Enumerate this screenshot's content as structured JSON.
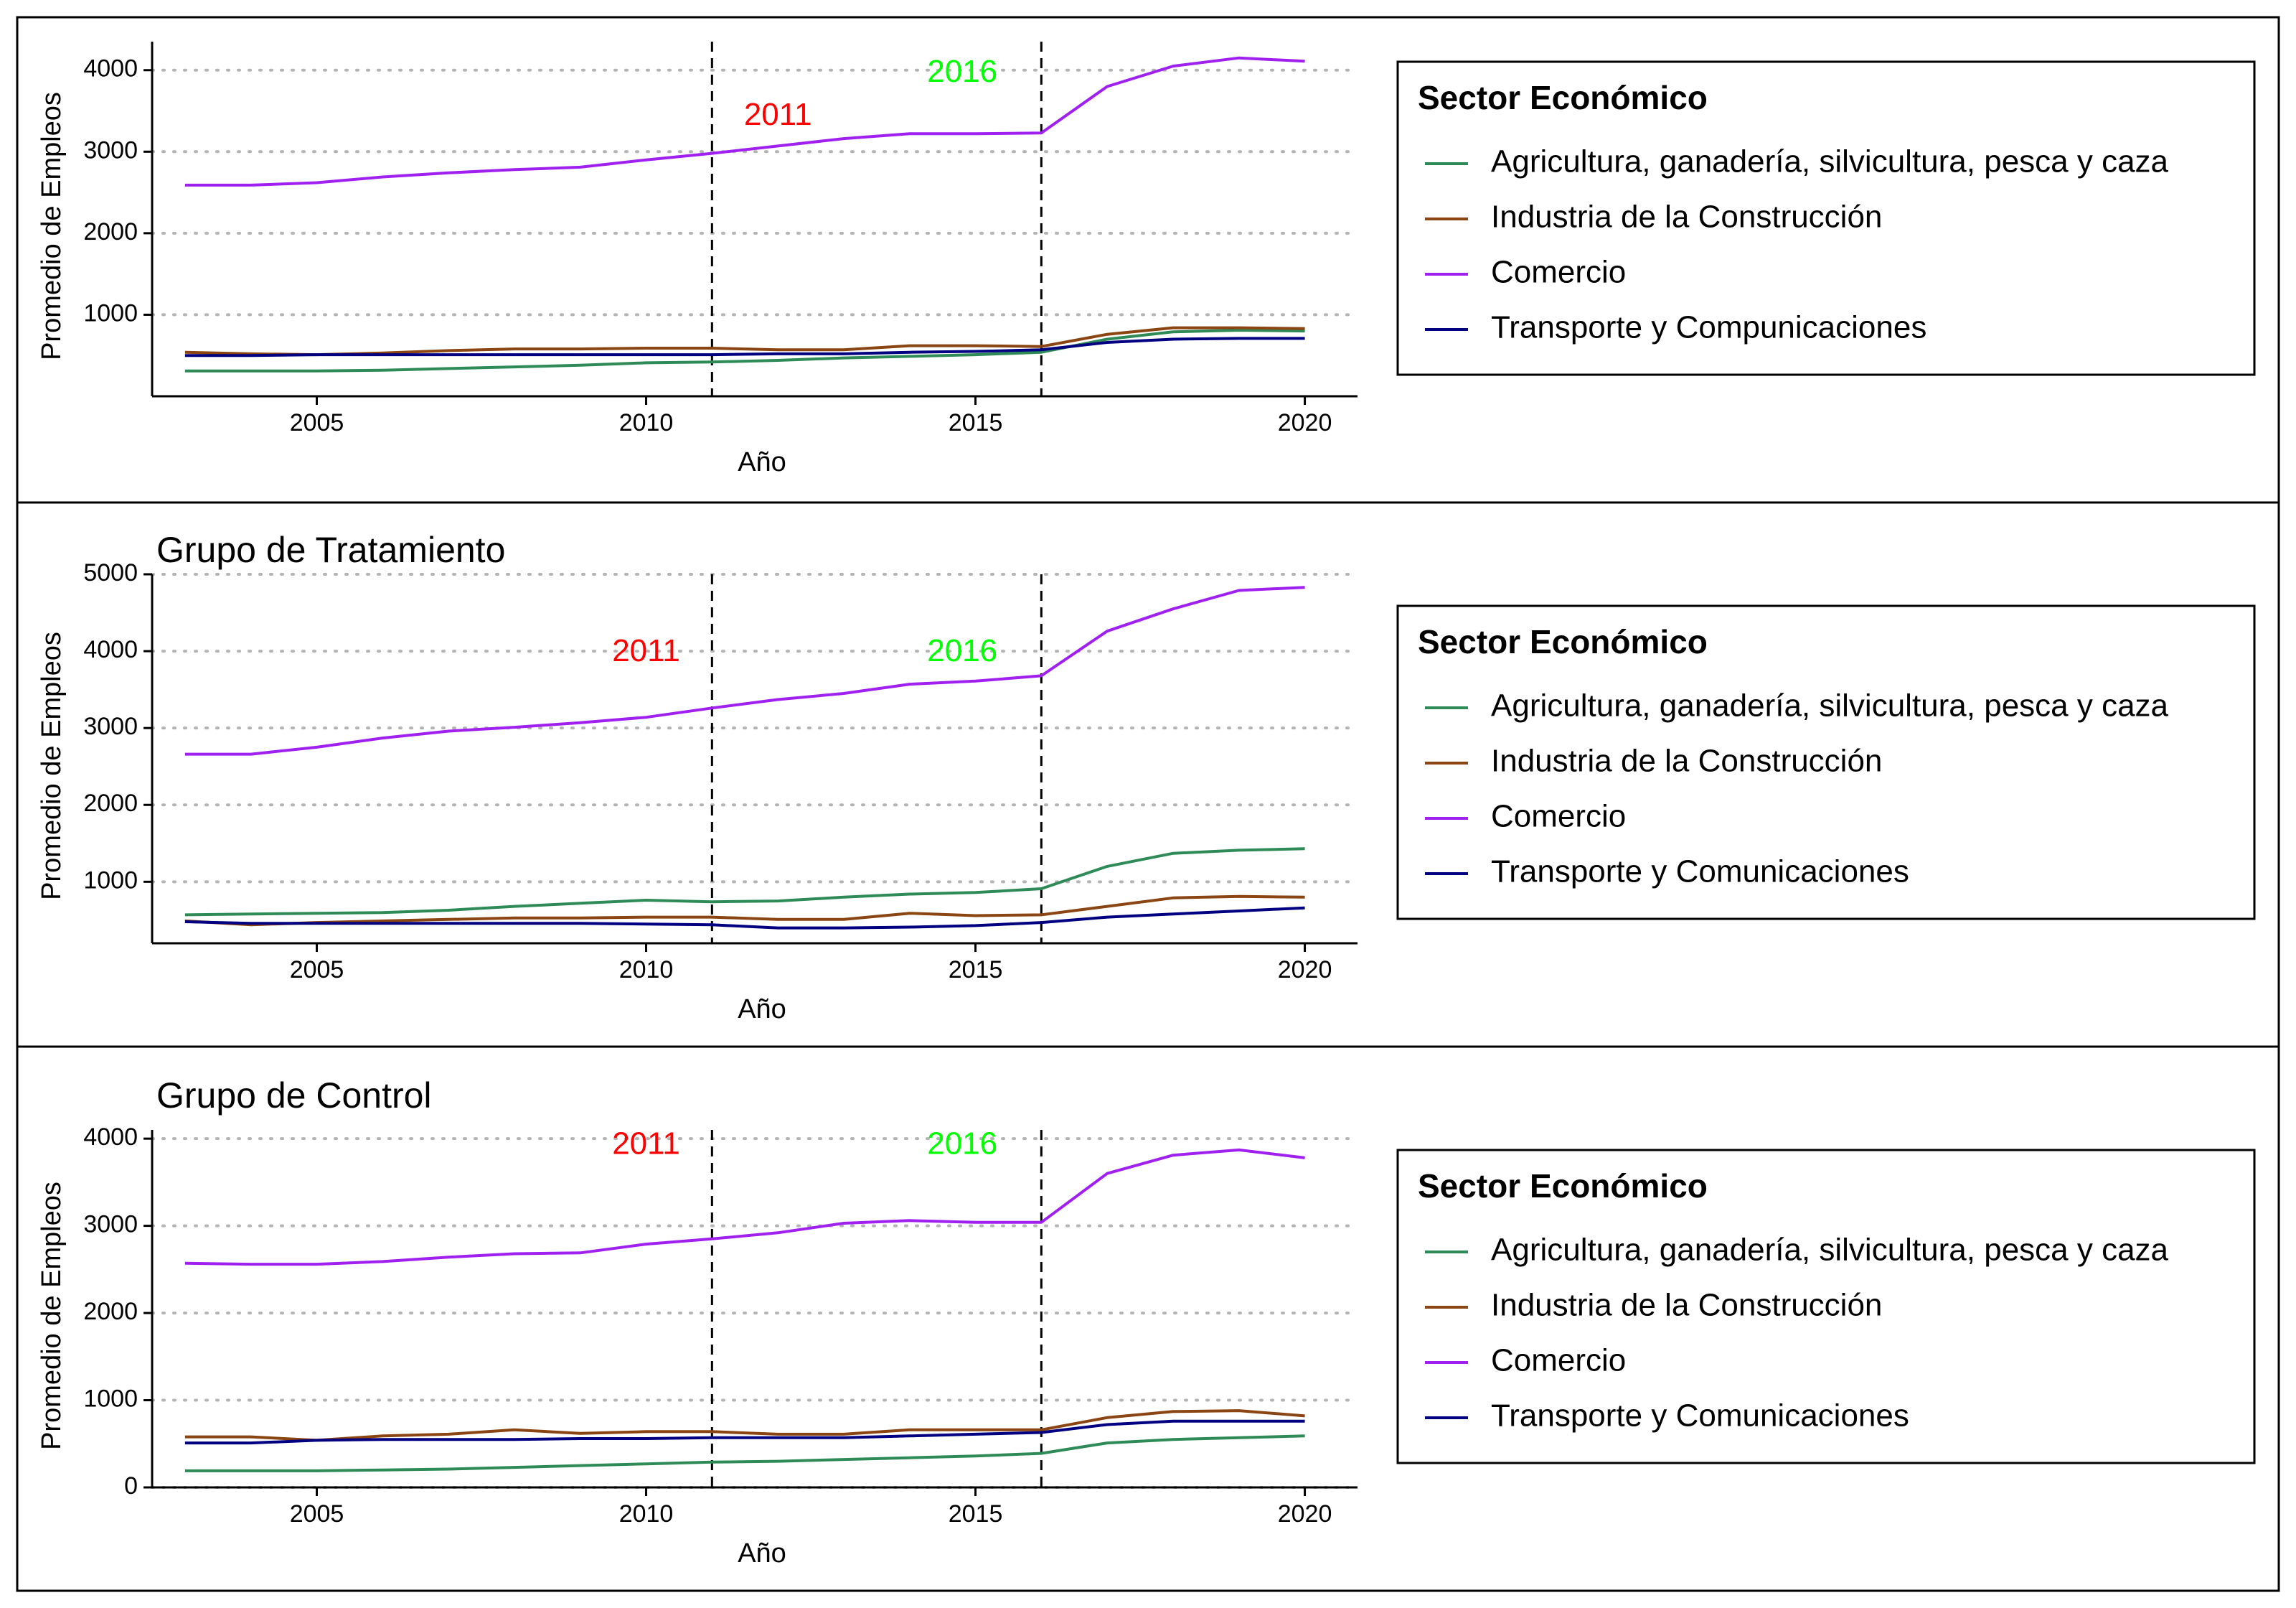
{
  "chart_data": [
    {
      "type": "line",
      "title": "",
      "xlabel": "Año",
      "ylabel": "Promedio de Empleos",
      "xlim": [
        2002.5,
        2020.8
      ],
      "ylim": [
        0,
        4350
      ],
      "xticks": [
        2005,
        2010,
        2015,
        2020
      ],
      "yticks": [
        1000,
        2000,
        3000,
        4000
      ],
      "grid": "horizontal dotted",
      "vlines": [
        {
          "x": 2011,
          "label": "2011",
          "color": "#ff0000",
          "label_x": 2012.0,
          "label_y": 3430
        },
        {
          "x": 2016,
          "label": "2016",
          "color": "#00ff00",
          "label_x": 2014.8,
          "label_y": 3960
        }
      ],
      "legend": {
        "title": "Sector Económico",
        "position": "right",
        "entries": [
          "Agricultura, ganadería, silvicultura, pesca y caza",
          "Industria de la Construcción",
          "Comercio",
          "Transporte y Compunicaciones"
        ]
      },
      "x": [
        2003,
        2004,
        2005,
        2006,
        2007,
        2008,
        2009,
        2010,
        2011,
        2012,
        2013,
        2014,
        2015,
        2016,
        2017,
        2018,
        2019,
        2020
      ],
      "series": [
        {
          "name": "Agricultura, ganadería, silvicultura, pesca y caza",
          "color": "#2e8b57",
          "values": [
            310,
            310,
            310,
            320,
            340,
            360,
            380,
            410,
            420,
            440,
            470,
            490,
            510,
            540,
            700,
            790,
            810,
            800
          ]
        },
        {
          "name": "Industria de la Construcción",
          "color": "#8b4513",
          "values": [
            540,
            520,
            510,
            530,
            560,
            580,
            580,
            590,
            590,
            570,
            570,
            620,
            620,
            610,
            760,
            840,
            840,
            830
          ]
        },
        {
          "name": "Comercio",
          "color": "#a020f0",
          "values": [
            2590,
            2590,
            2620,
            2690,
            2740,
            2780,
            2810,
            2900,
            2980,
            3070,
            3160,
            3220,
            3220,
            3230,
            3800,
            4050,
            4150,
            4110
          ]
        },
        {
          "name": "Transporte y Compunicaciones",
          "color": "#000080",
          "values": [
            500,
            500,
            510,
            510,
            510,
            510,
            510,
            510,
            510,
            520,
            520,
            540,
            550,
            570,
            660,
            700,
            710,
            710
          ]
        }
      ]
    },
    {
      "type": "line",
      "title": "Grupo de Tratamiento",
      "xlabel": "Año",
      "ylabel": "Promedio de Empleos",
      "xlim": [
        2002.5,
        2020.8
      ],
      "ylim": [
        200,
        5000
      ],
      "xticks": [
        2005,
        2010,
        2015,
        2020
      ],
      "yticks": [
        1000,
        2000,
        3000,
        4000,
        5000
      ],
      "grid": "horizontal dotted",
      "vlines": [
        {
          "x": 2011,
          "label": "2011",
          "color": "#ff0000",
          "label_x": 2010.0,
          "label_y": 3980
        },
        {
          "x": 2016,
          "label": "2016",
          "color": "#00ff00",
          "label_x": 2014.8,
          "label_y": 3980
        }
      ],
      "legend": {
        "title": "Sector Económico",
        "position": "right",
        "entries": [
          "Agricultura, ganadería, silvicultura, pesca y caza",
          "Industria de la Construcción",
          "Comercio",
          "Transporte y Comunicaciones"
        ]
      },
      "x": [
        2003,
        2004,
        2005,
        2006,
        2007,
        2008,
        2009,
        2010,
        2011,
        2012,
        2013,
        2014,
        2015,
        2016,
        2017,
        2018,
        2019,
        2020
      ],
      "series": [
        {
          "name": "Agricultura, ganadería, silvicultura, pesca y caza",
          "color": "#2e8b57",
          "values": [
            570,
            580,
            590,
            600,
            630,
            680,
            720,
            760,
            740,
            750,
            800,
            840,
            860,
            910,
            1200,
            1370,
            1410,
            1430
          ]
        },
        {
          "name": "Industria de la Construcción",
          "color": "#8b4513",
          "values": [
            490,
            440,
            470,
            490,
            510,
            530,
            530,
            540,
            540,
            510,
            510,
            590,
            560,
            570,
            680,
            790,
            810,
            800
          ]
        },
        {
          "name": "Comercio",
          "color": "#a020f0",
          "values": [
            2660,
            2660,
            2750,
            2870,
            2960,
            3010,
            3070,
            3140,
            3260,
            3370,
            3450,
            3570,
            3610,
            3680,
            4260,
            4550,
            4790,
            4830
          ]
        },
        {
          "name": "Transporte y Comunicaciones",
          "color": "#000080",
          "values": [
            480,
            460,
            460,
            460,
            460,
            460,
            460,
            450,
            440,
            400,
            400,
            410,
            430,
            470,
            540,
            580,
            620,
            660
          ]
        }
      ]
    },
    {
      "type": "line",
      "title": "Grupo de Control",
      "xlabel": "Año",
      "ylabel": "Promedio de Empleos",
      "xlim": [
        2002.5,
        2020.8
      ],
      "ylim": [
        0,
        4100
      ],
      "xticks": [
        2005,
        2010,
        2015,
        2020
      ],
      "yticks": [
        0,
        1000,
        2000,
        3000,
        4000
      ],
      "grid": "horizontal dotted",
      "vlines": [
        {
          "x": 2011,
          "label": "2011",
          "color": "#ff0000",
          "label_x": 2010.0,
          "label_y": 3920
        },
        {
          "x": 2016,
          "label": "2016",
          "color": "#00ff00",
          "label_x": 2014.8,
          "label_y": 3920
        }
      ],
      "legend": {
        "title": "Sector Económico",
        "position": "right",
        "entries": [
          "Agricultura, ganadería, silvicultura, pesca y caza",
          "Industria de la Construcción",
          "Comercio",
          "Transporte y Comunicaciones"
        ]
      },
      "x": [
        2003,
        2004,
        2005,
        2006,
        2007,
        2008,
        2009,
        2010,
        2011,
        2012,
        2013,
        2014,
        2015,
        2016,
        2017,
        2018,
        2019,
        2020
      ],
      "series": [
        {
          "name": "Agricultura, ganadería, silvicultura, pesca y caza",
          "color": "#2e8b57",
          "values": [
            190,
            190,
            190,
            200,
            210,
            230,
            250,
            270,
            290,
            300,
            320,
            340,
            360,
            390,
            510,
            550,
            570,
            590
          ]
        },
        {
          "name": "Industria de la Construcción",
          "color": "#8b4513",
          "values": [
            580,
            580,
            540,
            590,
            610,
            660,
            620,
            640,
            640,
            610,
            610,
            660,
            660,
            660,
            800,
            870,
            880,
            820
          ]
        },
        {
          "name": "Comercio",
          "color": "#a020f0",
          "values": [
            2570,
            2560,
            2560,
            2590,
            2640,
            2680,
            2690,
            2790,
            2850,
            2920,
            3030,
            3060,
            3040,
            3040,
            3600,
            3810,
            3870,
            3780
          ]
        },
        {
          "name": "Transporte y Comunicaciones",
          "color": "#000080",
          "values": [
            510,
            510,
            540,
            550,
            550,
            550,
            560,
            560,
            570,
            570,
            570,
            590,
            610,
            630,
            720,
            760,
            760,
            760
          ]
        }
      ]
    }
  ]
}
